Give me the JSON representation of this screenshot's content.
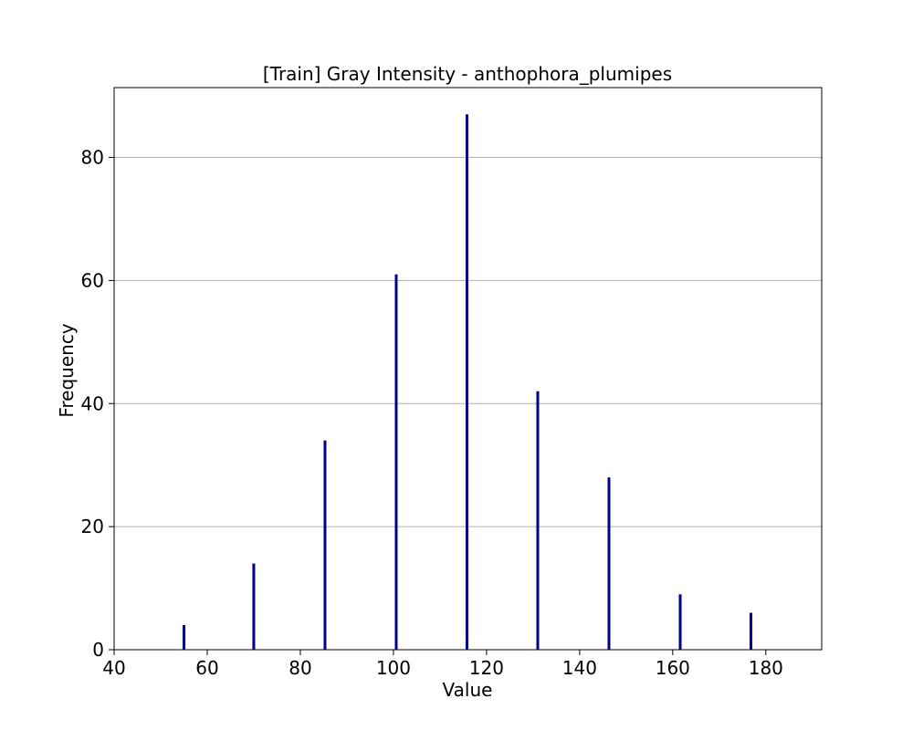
{
  "chart_data": {
    "type": "bar",
    "title": "[Train] Gray Intensity - anthophora_plumipes",
    "xlabel": "Value",
    "ylabel": "Frequency",
    "x": [
      55,
      70,
      85.3,
      100.6,
      115.8,
      131,
      146.3,
      161.6,
      176.8
    ],
    "values": [
      4,
      14,
      34,
      61,
      87,
      42,
      28,
      9,
      6
    ],
    "xlim": [
      40,
      192
    ],
    "ylim": [
      0,
      91.35
    ],
    "xticks": [
      40,
      60,
      80,
      100,
      120,
      140,
      160,
      180
    ],
    "yticks": [
      0,
      20,
      40,
      60,
      80
    ],
    "grid": "y",
    "legend": "none",
    "colors": {
      "bar": "#00008b",
      "grid": "#b0b0b0",
      "axis": "#000000"
    }
  }
}
